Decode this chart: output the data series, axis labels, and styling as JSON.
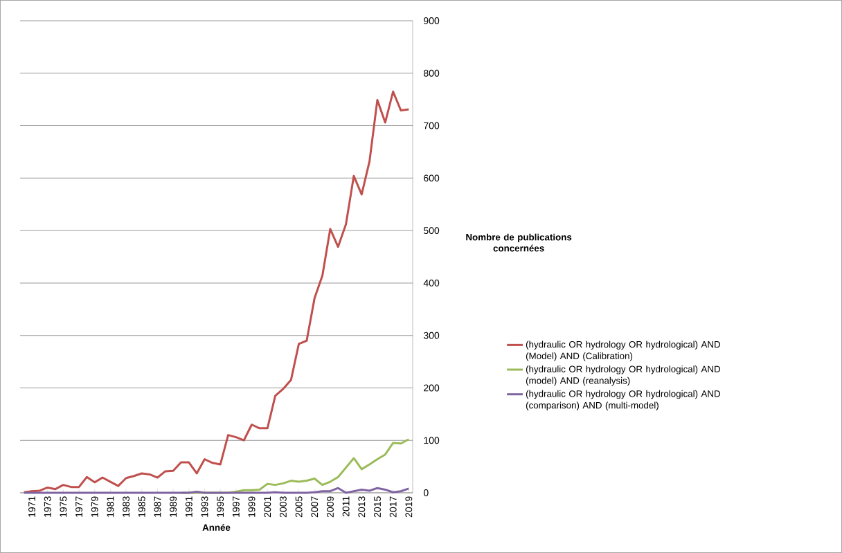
{
  "chart_data": {
    "type": "line",
    "xlabel": "Année",
    "ylabel": "Nombre de publications concernées",
    "categories": [
      null,
      "1971",
      null,
      "1973",
      null,
      "1975",
      null,
      "1977",
      null,
      "1979",
      null,
      "1981",
      null,
      "1983",
      null,
      "1985",
      null,
      "1987",
      null,
      "1989",
      null,
      "1991",
      null,
      "1993",
      null,
      "1995",
      null,
      "1997",
      null,
      "1999",
      null,
      "2001",
      null,
      "2003",
      null,
      "2005",
      null,
      "2007",
      null,
      "2009",
      null,
      "2011",
      null,
      "2013",
      null,
      "2015",
      null,
      "2017",
      null,
      "2019"
    ],
    "series": [
      {
        "name": "(hydraulic OR hydrology OR hydrological) AND (Model) AND (Calibration)",
        "color": "#c0504d",
        "values": [
          1,
          3,
          4,
          10,
          7,
          15,
          11,
          11,
          30,
          20,
          29,
          21,
          13,
          28,
          32,
          37,
          35,
          29,
          41,
          42,
          58,
          58,
          37,
          64,
          57,
          54,
          110,
          106,
          100,
          130,
          123,
          123,
          185,
          198,
          215,
          284,
          290,
          371,
          414,
          503,
          469,
          512,
          604,
          569,
          632,
          749,
          706,
          765,
          729,
          731
        ]
      },
      {
        "name": "(hydraulic OR hydrology OR hydrological) AND (model) AND (reanalysis)",
        "color": "#9bbb59",
        "values": [
          null,
          null,
          null,
          null,
          null,
          null,
          null,
          null,
          null,
          null,
          null,
          null,
          null,
          null,
          null,
          null,
          null,
          null,
          null,
          null,
          0,
          0,
          0,
          0,
          0,
          0,
          0,
          2,
          5,
          5,
          6,
          17,
          15,
          18,
          23,
          21,
          23,
          27,
          15,
          21,
          30,
          48,
          66,
          45,
          54,
          64,
          73,
          95,
          94,
          102
        ]
      },
      {
        "name": "(hydraulic OR hydrology OR hydrological) AND (comparison) AND (multi-model)",
        "color": "#8064a2",
        "values": [
          0,
          0,
          0,
          0,
          0,
          0,
          0,
          0,
          0,
          0,
          0,
          0,
          0,
          0,
          0,
          0,
          0,
          0,
          0,
          0,
          0,
          0,
          2,
          0,
          0,
          0,
          0,
          0,
          0,
          0,
          0,
          0,
          1,
          0,
          0,
          0,
          0,
          1,
          3,
          3,
          9,
          0,
          3,
          6,
          4,
          9,
          6,
          1,
          3,
          8
        ]
      }
    ],
    "ylim": [
      0,
      900
    ],
    "yticks": [
      0,
      100,
      200,
      300,
      400,
      500,
      600,
      700,
      800,
      900
    ],
    "grid": "y",
    "legend": "right",
    "marker": "none",
    "line_style": "solid"
  }
}
